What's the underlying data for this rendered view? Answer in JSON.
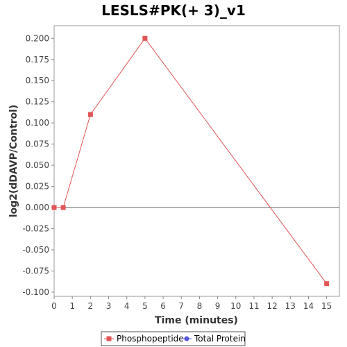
{
  "chart_data": {
    "type": "line",
    "title": "LESLS#PK(+ 3)_v1",
    "xlabel": "Time (minutes)",
    "ylabel": "log2(dDAVP/Control)",
    "xlim": [
      0,
      15.7
    ],
    "ylim": [
      -0.105,
      0.215
    ],
    "x_ticks": [
      0,
      1,
      2,
      3,
      4,
      5,
      6,
      7,
      8,
      9,
      10,
      11,
      12,
      13,
      14,
      15
    ],
    "y_ticks": [
      0.2,
      0.175,
      0.15,
      0.125,
      0.1,
      0.075,
      0.05,
      0.025,
      0.0,
      -0.025,
      -0.05,
      -0.075,
      -0.1
    ],
    "x_tick_labels": [
      "0",
      "1",
      "2",
      "3",
      "4",
      "5",
      "6",
      "7",
      "8",
      "9",
      "10",
      "11",
      "12",
      "13",
      "14",
      "15"
    ],
    "y_tick_labels": [
      "0.200",
      "0.175",
      "0.150",
      "0.125",
      "0.100",
      "0.075",
      "0.050",
      "0.025",
      "0.000",
      "-0.025",
      "-0.050",
      "-0.075",
      "-0.100"
    ],
    "zero_line": true,
    "grid": false,
    "legend_position": "bottom",
    "series": [
      {
        "name": "Phosphopeptide",
        "color": "#e05555",
        "marker": "square",
        "x": [
          0,
          0.5,
          2,
          5,
          15
        ],
        "y": [
          0.0,
          0.0,
          0.11,
          0.2,
          -0.09
        ]
      },
      {
        "name": "Total Protein",
        "color": "#5555e0",
        "marker": "circle",
        "x": [],
        "y": []
      }
    ]
  }
}
